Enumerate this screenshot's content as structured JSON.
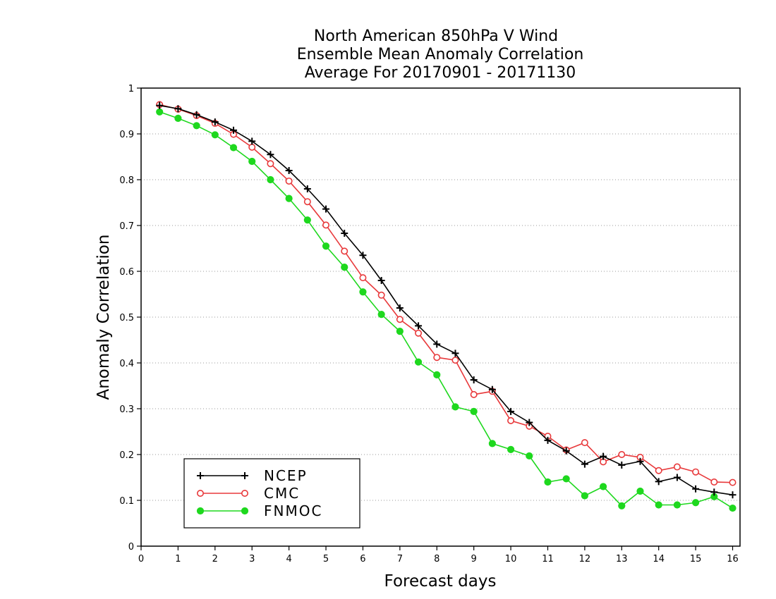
{
  "colors": {
    "NCEP": "#000000",
    "CMC": "#e8393b",
    "FNMOC": "#1ed81e",
    "grid": "#9a9a9a",
    "axis": "#000000"
  },
  "chart_data": {
    "type": "line",
    "title": [
      "North American 850hPa V Wind",
      "Ensemble Mean Anomaly Correlation",
      "Average For 20170901 - 20171130"
    ],
    "xlabel": "Forecast days",
    "ylabel": "Anomaly Correlation",
    "xlim": [
      0,
      16.2
    ],
    "ylim": [
      0,
      1
    ],
    "xticks": [
      0,
      1,
      2,
      3,
      4,
      5,
      6,
      7,
      8,
      9,
      10,
      11,
      12,
      13,
      14,
      15,
      16
    ],
    "yticks": [
      0,
      0.1,
      0.2,
      0.3,
      0.4,
      0.5,
      0.6,
      0.7,
      0.8,
      0.9,
      1
    ],
    "ytick_labels": [
      "0",
      "0.1",
      "0.2",
      "0.3",
      "0.4",
      "0.5",
      "0.6",
      "0.7",
      "0.8",
      "0.9",
      "1"
    ],
    "grid": "horizontal dotted",
    "legend_position": "bottom-left",
    "x": [
      0.5,
      1,
      1.5,
      2,
      2.5,
      3,
      3.5,
      4,
      4.5,
      5,
      5.5,
      6,
      6.5,
      7,
      7.5,
      8,
      8.5,
      9,
      9.5,
      10,
      10.5,
      11,
      11.5,
      12,
      12.5,
      13,
      13.5,
      14,
      14.5,
      15,
      15.5,
      16
    ],
    "series": [
      {
        "name": "NCEP",
        "marker": "plus",
        "values": [
          0.962,
          0.955,
          0.942,
          0.926,
          0.908,
          0.884,
          0.855,
          0.82,
          0.78,
          0.736,
          0.683,
          0.635,
          0.58,
          0.52,
          0.481,
          0.441,
          0.421,
          0.363,
          0.342,
          0.294,
          0.27,
          0.231,
          0.208,
          0.179,
          0.196,
          0.177,
          0.185,
          0.141,
          0.15,
          0.125,
          0.118,
          0.112
        ]
      },
      {
        "name": "CMC",
        "marker": "open-circle",
        "values": [
          0.964,
          0.954,
          0.94,
          0.923,
          0.899,
          0.871,
          0.835,
          0.797,
          0.752,
          0.701,
          0.644,
          0.586,
          0.548,
          0.495,
          0.465,
          0.412,
          0.406,
          0.331,
          0.338,
          0.274,
          0.262,
          0.24,
          0.21,
          0.226,
          0.184,
          0.2,
          0.194,
          0.165,
          0.173,
          0.162,
          0.14,
          0.139
        ]
      },
      {
        "name": "FNMOC",
        "marker": "filled-circle",
        "values": [
          0.948,
          0.934,
          0.918,
          0.898,
          0.87,
          0.84,
          0.8,
          0.759,
          0.712,
          0.655,
          0.609,
          0.555,
          0.506,
          0.469,
          0.402,
          0.374,
          0.304,
          0.294,
          0.224,
          0.211,
          0.197,
          0.14,
          0.147,
          0.11,
          0.13,
          0.088,
          0.12,
          0.09,
          0.09,
          0.095,
          0.108,
          0.083
        ]
      }
    ]
  }
}
